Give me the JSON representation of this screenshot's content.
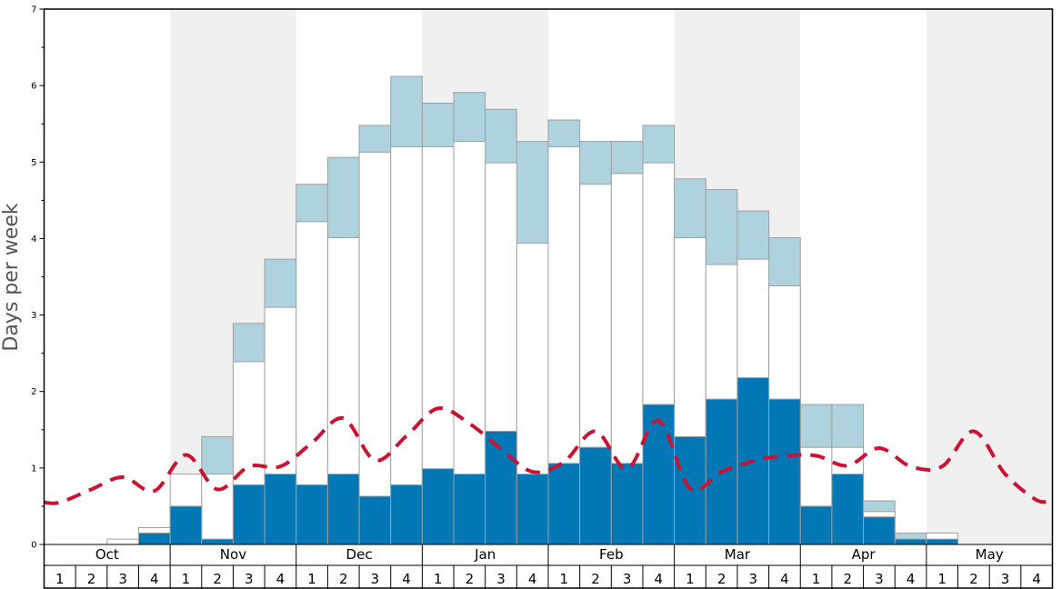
{
  "chart_data": {
    "type": "bar",
    "ylabel": "Days per week",
    "ylim": [
      0,
      7
    ],
    "y_ticks": [
      "0",
      "1",
      "2",
      "3",
      "4",
      "5",
      "6",
      "7"
    ],
    "months": [
      {
        "label": "Oct",
        "weeks": [
          "1",
          "2",
          "3",
          "4"
        ]
      },
      {
        "label": "Nov",
        "weeks": [
          "1",
          "2",
          "3",
          "4"
        ]
      },
      {
        "label": "Dec",
        "weeks": [
          "1",
          "2",
          "3",
          "4"
        ]
      },
      {
        "label": "Jan",
        "weeks": [
          "1",
          "2",
          "3",
          "4"
        ]
      },
      {
        "label": "Feb",
        "weeks": [
          "1",
          "2",
          "3",
          "4"
        ]
      },
      {
        "label": "Mar",
        "weeks": [
          "1",
          "2",
          "3",
          "4"
        ]
      },
      {
        "label": "Apr",
        "weeks": [
          "1",
          "2",
          "3",
          "4"
        ]
      },
      {
        "label": "May",
        "weeks": [
          "1",
          "2",
          "3",
          "4"
        ]
      }
    ],
    "series": [
      {
        "values": [
          0,
          0,
          0,
          0.15,
          0.5,
          0.07,
          0.78,
          0.92,
          0.78,
          0.92,
          0.63,
          0.78,
          0.99,
          0.92,
          1.48,
          0.92,
          1.06,
          1.27,
          1.06,
          1.83,
          1.41,
          1.9,
          2.18,
          1.9,
          0.5,
          0.92,
          0.36,
          0.07,
          0.07,
          0,
          0,
          0
        ]
      },
      {
        "values": [
          0,
          0,
          0.07,
          0.22,
          0.92,
          0.92,
          2.39,
          3.1,
          4.22,
          4.01,
          5.13,
          5.2,
          5.2,
          5.27,
          4.99,
          3.94,
          5.2,
          4.71,
          4.85,
          4.99,
          4.01,
          3.66,
          3.73,
          3.38,
          1.27,
          1.27,
          0.43,
          0.07,
          0.15,
          0,
          0,
          0
        ]
      },
      {
        "values": [
          0,
          0,
          0,
          0,
          0,
          1.41,
          2.89,
          3.73,
          4.71,
          5.06,
          5.48,
          6.12,
          5.77,
          5.91,
          5.69,
          5.27,
          5.55,
          5.27,
          5.27,
          5.48,
          4.78,
          4.64,
          4.36,
          4.01,
          1.83,
          1.83,
          0.57,
          0.15,
          0,
          0,
          0,
          0
        ]
      },
      {
        "values": [
          0.55,
          0.72,
          0.88,
          0.7,
          1.17,
          0.72,
          1.02,
          1.02,
          1.33,
          1.65,
          1.1,
          1.42,
          1.78,
          1.58,
          1.25,
          0.95,
          1.08,
          1.48,
          0.99,
          1.62,
          0.73,
          0.95,
          1.09,
          1.16,
          1.16,
          1.03,
          1.26,
          1.02,
          1.02,
          1.48,
          0.92,
          0.58
        ]
      }
    ],
    "colors": {
      "dark_bar": "#0277b5",
      "light_bar": "#aed3df",
      "white_bar": "#ffffff",
      "bar_stroke": "#a0a0a0",
      "dashed_line": "#cc1133",
      "shade": "#f0f0f0"
    },
    "shaded_months": [
      "Nov",
      "Jan",
      "Mar",
      "May"
    ],
    "grid": false,
    "line_style": "dashed"
  }
}
